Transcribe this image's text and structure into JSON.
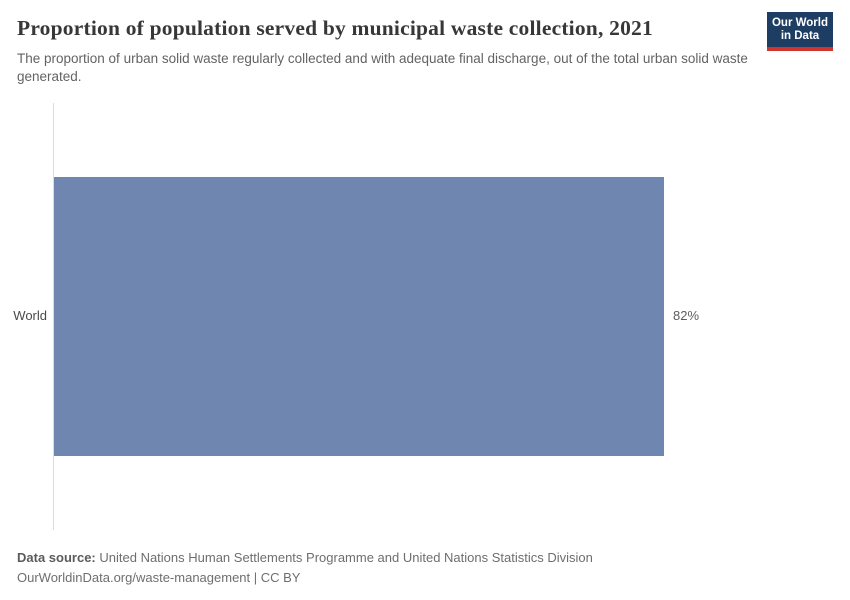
{
  "header": {
    "title": "Proportion of population served by municipal waste collection, 2021",
    "subtitle": "The proportion of urban solid waste regularly collected and with adequate final discharge, out of the total urban solid waste generated.",
    "logo": {
      "line1": "Our World",
      "line2": "in Data",
      "bg_color": "#1d3d63",
      "stripe_color": "#cf352e"
    }
  },
  "chart_data": {
    "type": "bar",
    "orientation": "horizontal",
    "title": "Proportion of population served by municipal waste collection, 2021",
    "categories": [
      "World"
    ],
    "values": [
      82
    ],
    "value_labels": [
      "82%"
    ],
    "xlabel": "",
    "ylabel": "",
    "xlim": [
      0,
      100
    ],
    "unit": "%",
    "bar_color": "#6f86b1",
    "axis_line_color": "#dcdcdc",
    "grid": false,
    "legend": "none"
  },
  "footer": {
    "data_source_label": "Data source:",
    "data_source_text": "United Nations Human Settlements Programme and United Nations Statistics Division",
    "attribution": "OurWorldinData.org/waste-management | CC BY"
  }
}
